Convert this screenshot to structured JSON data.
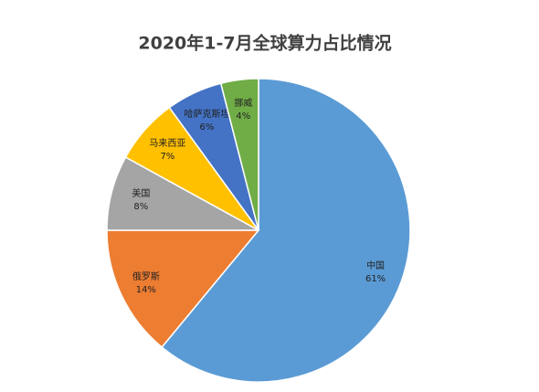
{
  "chart_data": {
    "type": "pie",
    "title": "2020年1-7月全球算力占比情况",
    "categories": [
      "中国",
      "俄罗斯",
      "美国",
      "马来西亚",
      "哈萨克斯坦",
      "挪威"
    ],
    "values": [
      61,
      14,
      8,
      7,
      6,
      4
    ],
    "value_labels": [
      "61%",
      "14%",
      "8%",
      "7%",
      "6%",
      "4%"
    ],
    "colors": [
      "#5b9bd5",
      "#ed7d31",
      "#a5a5a5",
      "#ffc000",
      "#4472c4",
      "#70ad47"
    ]
  }
}
